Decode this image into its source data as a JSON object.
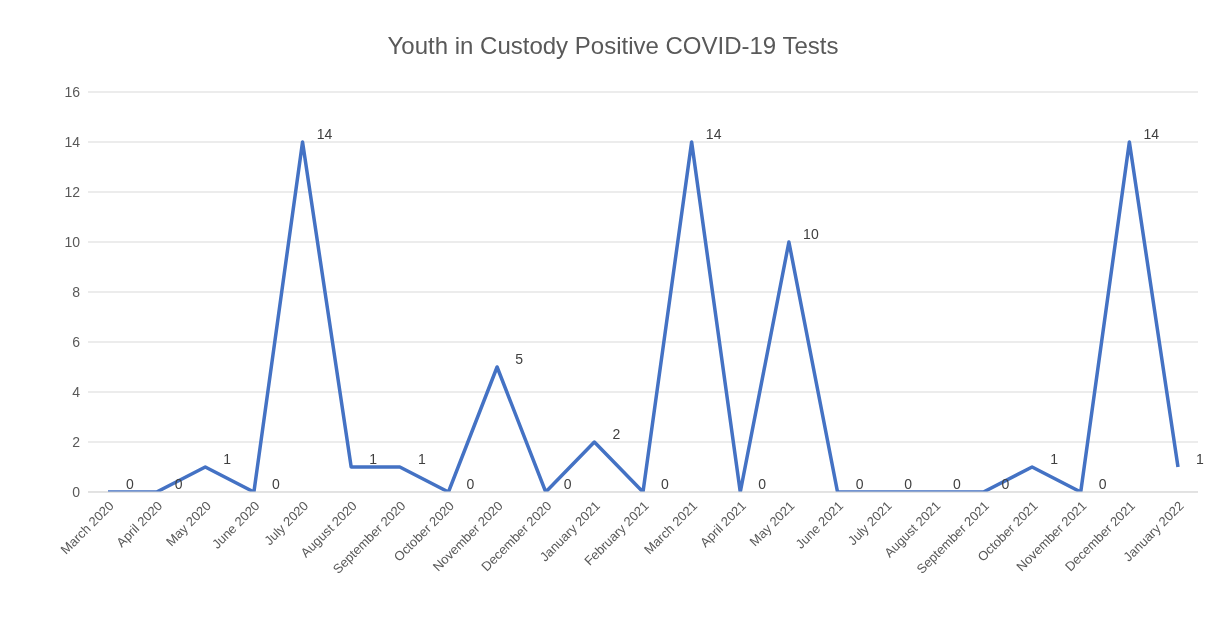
{
  "chart_data": {
    "type": "line",
    "title": "Youth in Custody Positive COVID-19 Tests",
    "categories": [
      "March 2020",
      "April 2020",
      "May 2020",
      "June 2020",
      "July 2020",
      "August 2020",
      "September 2020",
      "October 2020",
      "November 2020",
      "December 2020",
      "January 2021",
      "February 2021",
      "March 2021",
      "April 2021",
      "May 2021",
      "June 2021",
      "July 2021",
      "August 2021",
      "September 2021",
      "October 2021",
      "November 2021",
      "December 2021",
      "January 2022"
    ],
    "values": [
      0,
      0,
      1,
      0,
      14,
      1,
      1,
      0,
      5,
      0,
      2,
      0,
      14,
      0,
      10,
      0,
      0,
      0,
      0,
      1,
      0,
      14,
      1
    ],
    "color": "#4472c4",
    "ylim": [
      0,
      16
    ],
    "yticks": [
      0,
      2,
      4,
      6,
      8,
      10,
      12,
      14,
      16
    ],
    "grid": "y",
    "marker": "none",
    "line_style": "solid",
    "data_labels": true
  }
}
